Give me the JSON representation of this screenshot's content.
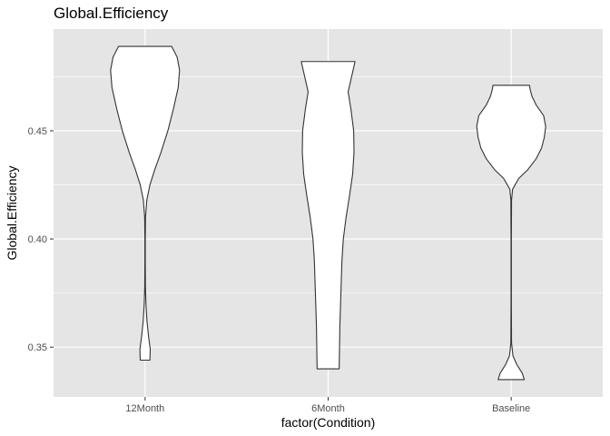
{
  "chart_data": {
    "type": "violin",
    "title": "Global.Efficiency",
    "xlabel": "factor(Condition)",
    "ylabel": "Global.Efficiency",
    "categories": [
      "12Month",
      "6Month",
      "Baseline"
    ],
    "ylim": [
      0.327,
      0.497
    ],
    "yticks": [
      0.35,
      0.4,
      0.45
    ],
    "ytick_labels": [
      "0.35",
      "0.40",
      "0.45"
    ],
    "grid": true,
    "colors": {
      "panel_background": "#e5e5e5",
      "gridline": "#ffffff",
      "violin_fill": "#ffffff",
      "violin_outline": "#333333",
      "tick_text": "#4d4d4d"
    },
    "series": [
      {
        "category": "12Month",
        "min": 0.344,
        "max": 0.489,
        "profile": [
          [
            0.344,
            0.14
          ],
          [
            0.349,
            0.15
          ],
          [
            0.355,
            0.1
          ],
          [
            0.362,
            0.055
          ],
          [
            0.37,
            0.025
          ],
          [
            0.378,
            0.01
          ],
          [
            0.39,
            0.006
          ],
          [
            0.4,
            0.006
          ],
          [
            0.41,
            0.012
          ],
          [
            0.418,
            0.05
          ],
          [
            0.425,
            0.14
          ],
          [
            0.432,
            0.28
          ],
          [
            0.44,
            0.46
          ],
          [
            0.45,
            0.66
          ],
          [
            0.46,
            0.82
          ],
          [
            0.47,
            0.96
          ],
          [
            0.478,
            1.0
          ],
          [
            0.484,
            0.93
          ],
          [
            0.489,
            0.77
          ]
        ]
      },
      {
        "category": "6Month",
        "min": 0.34,
        "max": 0.482,
        "profile": [
          [
            0.34,
            0.32
          ],
          [
            0.35,
            0.33
          ],
          [
            0.36,
            0.34
          ],
          [
            0.37,
            0.36
          ],
          [
            0.38,
            0.38
          ],
          [
            0.39,
            0.4
          ],
          [
            0.4,
            0.44
          ],
          [
            0.41,
            0.52
          ],
          [
            0.42,
            0.62
          ],
          [
            0.43,
            0.71
          ],
          [
            0.44,
            0.75
          ],
          [
            0.45,
            0.74
          ],
          [
            0.46,
            0.66
          ],
          [
            0.468,
            0.58
          ],
          [
            0.475,
            0.68
          ],
          [
            0.482,
            0.78
          ]
        ]
      },
      {
        "category": "Baseline",
        "min": 0.335,
        "max": 0.471,
        "profile": [
          [
            0.335,
            0.38
          ],
          [
            0.338,
            0.32
          ],
          [
            0.342,
            0.16
          ],
          [
            0.346,
            0.05
          ],
          [
            0.352,
            0.01
          ],
          [
            0.37,
            0.005
          ],
          [
            0.4,
            0.005
          ],
          [
            0.418,
            0.01
          ],
          [
            0.423,
            0.04
          ],
          [
            0.428,
            0.22
          ],
          [
            0.432,
            0.48
          ],
          [
            0.437,
            0.72
          ],
          [
            0.442,
            0.88
          ],
          [
            0.447,
            0.96
          ],
          [
            0.452,
            1.0
          ],
          [
            0.457,
            0.94
          ],
          [
            0.462,
            0.72
          ],
          [
            0.466,
            0.6
          ],
          [
            0.469,
            0.55
          ],
          [
            0.471,
            0.53
          ]
        ]
      }
    ]
  }
}
